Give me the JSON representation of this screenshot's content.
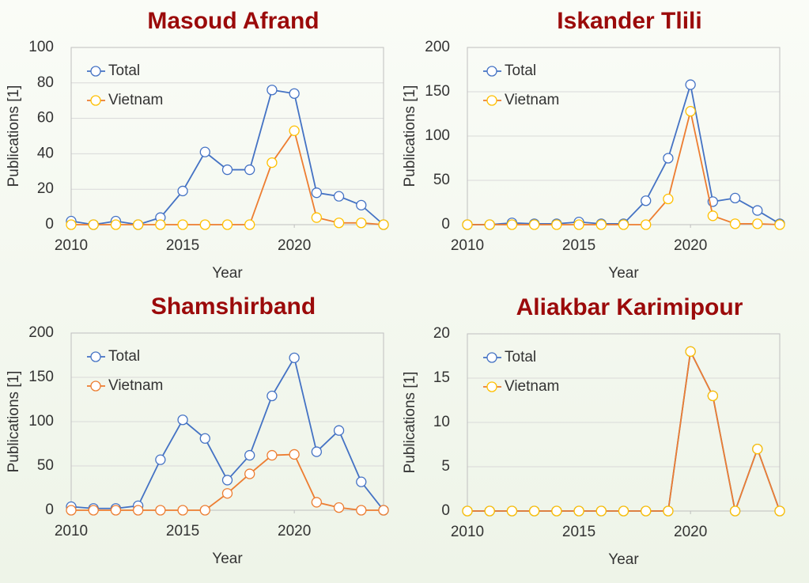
{
  "chart_data": [
    {
      "type": "line",
      "title": "Masoud Afrand",
      "xlabel": "Year",
      "ylabel": "Publications [1]",
      "x": [
        2010,
        2011,
        2012,
        2013,
        2014,
        2015,
        2016,
        2017,
        2018,
        2019,
        2020,
        2021,
        2022,
        2023,
        2024
      ],
      "xlim": [
        2010,
        2024
      ],
      "xticks": [
        2010,
        2015,
        2020
      ],
      "ylim": [
        0,
        100
      ],
      "yticks": [
        0,
        20,
        40,
        60,
        80,
        100
      ],
      "grid": true,
      "legend": "upper left",
      "series": [
        {
          "name": "Total",
          "color": "#4472c4",
          "marker_color": "#4472c4",
          "values": [
            2,
            0,
            2,
            0,
            4,
            19,
            41,
            31,
            31,
            76,
            74,
            18,
            16,
            11,
            0
          ]
        },
        {
          "name": "Vietnam",
          "color": "#ed7d31",
          "marker_color": "#ffc000",
          "values": [
            0,
            0,
            0,
            0,
            0,
            0,
            0,
            0,
            0,
            35,
            53,
            4,
            1,
            1,
            0
          ]
        }
      ]
    },
    {
      "type": "line",
      "title": "Iskander Tlili",
      "xlabel": "Year",
      "ylabel": "Publications [1]",
      "x": [
        2010,
        2011,
        2012,
        2013,
        2014,
        2015,
        2016,
        2017,
        2018,
        2019,
        2020,
        2021,
        2022,
        2023,
        2024
      ],
      "xlim": [
        2010,
        2024
      ],
      "xticks": [
        2010,
        2015,
        2020
      ],
      "ylim": [
        0,
        200
      ],
      "yticks": [
        0,
        50,
        100,
        150,
        200
      ],
      "grid": true,
      "legend": "upper left",
      "series": [
        {
          "name": "Total",
          "color": "#4472c4",
          "marker_color": "#4472c4",
          "values": [
            0,
            0,
            2,
            1,
            1,
            3,
            1,
            1,
            27,
            75,
            158,
            26,
            30,
            16,
            1
          ]
        },
        {
          "name": "Vietnam",
          "color": "#ed7d31",
          "marker_color": "#ffc000",
          "values": [
            0,
            0,
            0,
            0,
            0,
            0,
            0,
            0,
            0,
            29,
            128,
            10,
            1,
            1,
            0
          ]
        }
      ]
    },
    {
      "type": "line",
      "title": "Shamshirband",
      "xlabel": "Year",
      "ylabel": "Publications [1]",
      "x": [
        2010,
        2011,
        2012,
        2013,
        2014,
        2015,
        2016,
        2017,
        2018,
        2019,
        2020,
        2021,
        2022,
        2023,
        2024
      ],
      "xlim": [
        2010,
        2024
      ],
      "xticks": [
        2010,
        2015,
        2020
      ],
      "ylim": [
        0,
        200
      ],
      "yticks": [
        0,
        50,
        100,
        150,
        200
      ],
      "grid": true,
      "legend": "upper left",
      "series": [
        {
          "name": "Total",
          "color": "#4472c4",
          "marker_color": "#4472c4",
          "values": [
            4,
            2,
            2,
            5,
            57,
            102,
            81,
            34,
            62,
            129,
            172,
            66,
            90,
            32,
            0
          ]
        },
        {
          "name": "Vietnam",
          "color": "#ed7d31",
          "marker_color": "#ed7d31",
          "values": [
            0,
            0,
            0,
            0,
            0,
            0,
            0,
            19,
            41,
            62,
            63,
            9,
            3,
            0,
            0
          ]
        }
      ]
    },
    {
      "type": "line",
      "title": "Aliakbar Karimipour",
      "xlabel": "Year",
      "ylabel": "Publications [1]",
      "x": [
        2010,
        2011,
        2012,
        2013,
        2014,
        2015,
        2016,
        2017,
        2018,
        2019,
        2020,
        2021,
        2022,
        2023,
        2024
      ],
      "xlim": [
        2010,
        2024
      ],
      "xticks": [
        2010,
        2015,
        2020
      ],
      "ylim": [
        0,
        20
      ],
      "yticks": [
        0,
        5,
        10,
        15,
        20
      ],
      "grid": true,
      "legend": "upper left",
      "series": [
        {
          "name": "Total",
          "color": "#4472c4",
          "marker_color": "#4472c4",
          "values": [
            0,
            0,
            0,
            0,
            0,
            0,
            0,
            0,
            0,
            0,
            18,
            13,
            0,
            7,
            0
          ]
        },
        {
          "name": "Vietnam",
          "color": "#ed7d31",
          "marker_color": "#ffc000",
          "values": [
            0,
            0,
            0,
            0,
            0,
            0,
            0,
            0,
            0,
            0,
            18,
            13,
            0,
            7,
            0
          ]
        }
      ]
    }
  ]
}
